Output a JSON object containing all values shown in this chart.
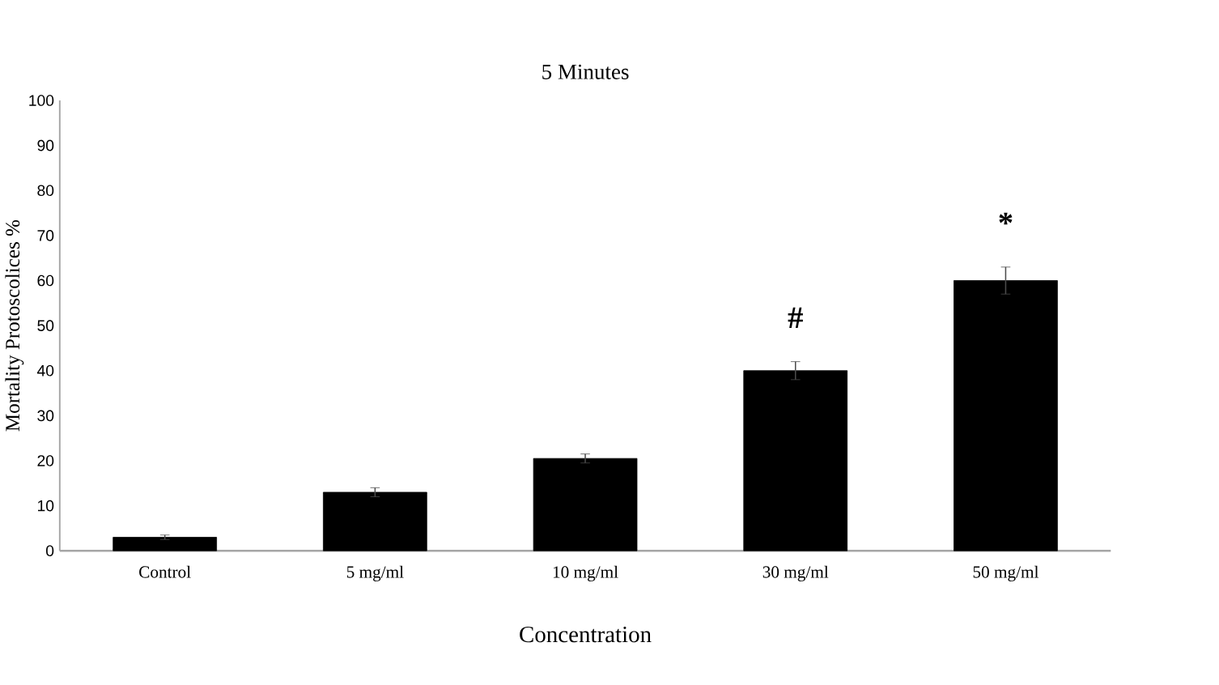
{
  "chart_data": {
    "type": "bar",
    "title": "5 Minutes",
    "xlabel": "Concentration",
    "ylabel": "Mortality Protoscolices %",
    "categories": [
      "Control",
      "5 mg/ml",
      "10 mg/ml",
      "30 mg/ml",
      "50 mg/ml"
    ],
    "values": [
      3,
      13,
      20.5,
      40,
      60
    ],
    "errors": [
      0.5,
      1,
      1,
      2,
      3
    ],
    "color": "#000000",
    "ylim": [
      0,
      100
    ],
    "yticks": [
      0,
      10,
      20,
      30,
      40,
      50,
      60,
      70,
      80,
      90,
      100
    ],
    "annotations": [
      "#",
      "*"
    ]
  }
}
